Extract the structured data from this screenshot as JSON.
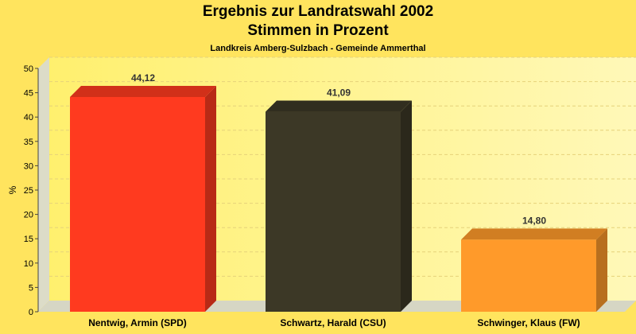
{
  "chart_data": {
    "type": "bar",
    "title": "Ergebnis zur Landratswahl 2002",
    "subtitle": "Stimmen in Prozent",
    "caption": "Landkreis Amberg-Sulzbach - Gemeinde Ammerthal",
    "ylabel": "%",
    "xlabel": "",
    "ylim": [
      0,
      50
    ],
    "yticks": [
      0,
      5,
      10,
      15,
      20,
      25,
      30,
      35,
      40,
      45,
      50
    ],
    "grid": true,
    "categories": [
      "Nentwig, Armin (SPD)",
      "Schwartz, Harald (CSU)",
      "Schwinger, Klaus (FW)"
    ],
    "values": [
      44.12,
      41.09,
      14.8
    ],
    "value_labels": [
      "44,12",
      "41,09",
      "14,80"
    ],
    "colors": [
      "#FF3A1F",
      "#3C3826",
      "#FF9A2A"
    ]
  }
}
